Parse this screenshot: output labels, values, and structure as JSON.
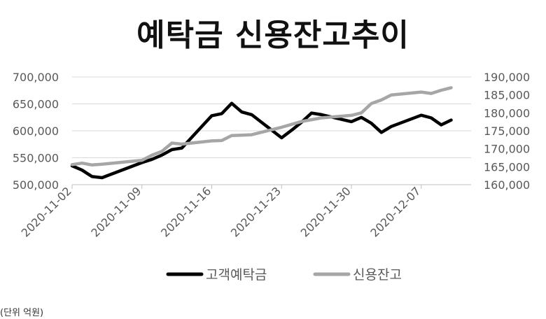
{
  "title": "예탁금 신용잔고추이",
  "unit_note": "(단위 억원)",
  "chart_data": {
    "type": "line",
    "title": "예탁금 신용잔고추이",
    "x_ticks": [
      "2020-11-02",
      "2020-11-09",
      "2020-11-16",
      "2020-11-23",
      "2020-11-30",
      "2020-12-07"
    ],
    "x_points": [
      "2020-11-02",
      "2020-11-03",
      "2020-11-04",
      "2020-11-05",
      "2020-11-09",
      "2020-11-10",
      "2020-11-11",
      "2020-11-12",
      "2020-11-13",
      "2020-11-16",
      "2020-11-17",
      "2020-11-18",
      "2020-11-19",
      "2020-11-20",
      "2020-11-23",
      "2020-11-24",
      "2020-11-25",
      "2020-11-26",
      "2020-11-27",
      "2020-11-30",
      "2020-12-01",
      "2020-12-02",
      "2020-12-03",
      "2020-12-04",
      "2020-12-07",
      "2020-12-08",
      "2020-12-09",
      "2020-12-10"
    ],
    "left_axis": {
      "ylim": [
        500000,
        700000
      ],
      "ticks": [
        "500,000",
        "550,000",
        "600,000",
        "650,000",
        "700,000"
      ],
      "tick_values": [
        500000,
        550000,
        600000,
        650000,
        700000
      ]
    },
    "right_axis": {
      "ylim": [
        160000,
        190000
      ],
      "ticks": [
        "160,000",
        "165,000",
        "170,000",
        "175,000",
        "180,000",
        "185,000",
        "190,000"
      ],
      "tick_values": [
        160000,
        165000,
        170000,
        175000,
        180000,
        185000,
        190000
      ]
    },
    "series": [
      {
        "name": "고객예탁금",
        "axis": "left",
        "color": "#000000",
        "values": [
          {
            "x": "2020-11-02",
            "y": 535000
          },
          {
            "x": "2020-11-03",
            "y": 527000
          },
          {
            "x": "2020-11-04",
            "y": 515000
          },
          {
            "x": "2020-11-05",
            "y": 513000
          },
          {
            "x": "2020-11-09",
            "y": 541000
          },
          {
            "x": "2020-11-10",
            "y": 547000
          },
          {
            "x": "2020-11-11",
            "y": 555000
          },
          {
            "x": "2020-11-12",
            "y": 565000
          },
          {
            "x": "2020-11-13",
            "y": 568000
          },
          {
            "x": "2020-11-16",
            "y": 628000
          },
          {
            "x": "2020-11-17",
            "y": 632000
          },
          {
            "x": "2020-11-18",
            "y": 651000
          },
          {
            "x": "2020-11-19",
            "y": 635000
          },
          {
            "x": "2020-11-20",
            "y": 630000
          },
          {
            "x": "2020-11-23",
            "y": 587000
          },
          {
            "x": "2020-11-24",
            "y": 601000
          },
          {
            "x": "2020-11-25",
            "y": 616000
          },
          {
            "x": "2020-11-26",
            "y": 633000
          },
          {
            "x": "2020-11-27",
            "y": 630000
          },
          {
            "x": "2020-11-30",
            "y": 617000
          },
          {
            "x": "2020-12-01",
            "y": 625000
          },
          {
            "x": "2020-12-02",
            "y": 614000
          },
          {
            "x": "2020-12-03",
            "y": 597000
          },
          {
            "x": "2020-12-04",
            "y": 608000
          },
          {
            "x": "2020-12-07",
            "y": 629000
          },
          {
            "x": "2020-12-08",
            "y": 624000
          },
          {
            "x": "2020-12-09",
            "y": 611000
          },
          {
            "x": "2020-12-10",
            "y": 620000
          }
        ]
      },
      {
        "name": "신용잔고",
        "axis": "right",
        "color": "#a6a6a6",
        "values": [
          {
            "x": "2020-11-02",
            "y": 165600
          },
          {
            "x": "2020-11-03",
            "y": 166000
          },
          {
            "x": "2020-11-04",
            "y": 165500
          },
          {
            "x": "2020-11-05",
            "y": 165700
          },
          {
            "x": "2020-11-09",
            "y": 166800
          },
          {
            "x": "2020-11-10",
            "y": 168200
          },
          {
            "x": "2020-11-11",
            "y": 169300
          },
          {
            "x": "2020-11-12",
            "y": 171600
          },
          {
            "x": "2020-11-13",
            "y": 171300
          },
          {
            "x": "2020-11-16",
            "y": 172200
          },
          {
            "x": "2020-11-17",
            "y": 172300
          },
          {
            "x": "2020-11-18",
            "y": 173700
          },
          {
            "x": "2020-11-19",
            "y": 173800
          },
          {
            "x": "2020-11-20",
            "y": 173900
          },
          {
            "x": "2020-11-23",
            "y": 176000
          },
          {
            "x": "2020-11-24",
            "y": 176800
          },
          {
            "x": "2020-11-25",
            "y": 177600
          },
          {
            "x": "2020-11-26",
            "y": 178100
          },
          {
            "x": "2020-11-27",
            "y": 178600
          },
          {
            "x": "2020-11-30",
            "y": 179300
          },
          {
            "x": "2020-12-01",
            "y": 180000
          },
          {
            "x": "2020-12-02",
            "y": 182600
          },
          {
            "x": "2020-12-03",
            "y": 183600
          },
          {
            "x": "2020-12-04",
            "y": 185000
          },
          {
            "x": "2020-12-07",
            "y": 185800
          },
          {
            "x": "2020-12-08",
            "y": 185400
          },
          {
            "x": "2020-12-09",
            "y": 186300
          },
          {
            "x": "2020-12-10",
            "y": 187000
          }
        ]
      }
    ],
    "grid": true,
    "legend_position": "bottom"
  }
}
